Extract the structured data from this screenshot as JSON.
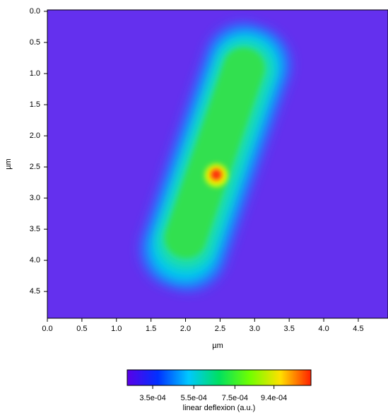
{
  "chart_data": {
    "type": "heatmap",
    "xlabel": "µm",
    "ylabel": "µm",
    "xlim": [
      0,
      4.93
    ],
    "ylim": [
      0,
      4.93
    ],
    "y_inverted": true,
    "xticks": [
      {
        "value": 0,
        "label": "0.0"
      },
      0.5,
      {
        "value": 1,
        "label": "1.0"
      },
      1.5,
      {
        "value": 2,
        "label": "2.0"
      },
      2.5,
      {
        "value": 3,
        "label": "3.0"
      },
      3.5,
      {
        "value": 4,
        "label": "4.0"
      },
      4.5
    ],
    "yticks": [
      {
        "value": 0,
        "label": "0.0"
      },
      0.5,
      {
        "value": 1,
        "label": "1.0"
      },
      1.5,
      {
        "value": 2,
        "label": "2.0"
      },
      2.5,
      {
        "value": 3,
        "label": "3.0"
      },
      3.5,
      {
        "value": 4,
        "label": "4.0"
      },
      4.5
    ],
    "colormap": [
      "#5a00e8",
      "#0030ff",
      "#00c8ff",
      "#00e060",
      "#70ff00",
      "#ffe000",
      "#ff2000"
    ],
    "colorbar": {
      "label": "linear deflexion (a.u.)",
      "lim": [
        0.000226,
        0.00112
      ],
      "ticks": [
        {
          "value": 0.00035,
          "label": "3.5e-04"
        },
        {
          "value": 0.00055,
          "label": "5.5e-04"
        },
        {
          "value": 0.00075,
          "label": "7.5e-04"
        },
        {
          "value": 0.00094,
          "label": "9.4e-04"
        }
      ]
    }
  }
}
